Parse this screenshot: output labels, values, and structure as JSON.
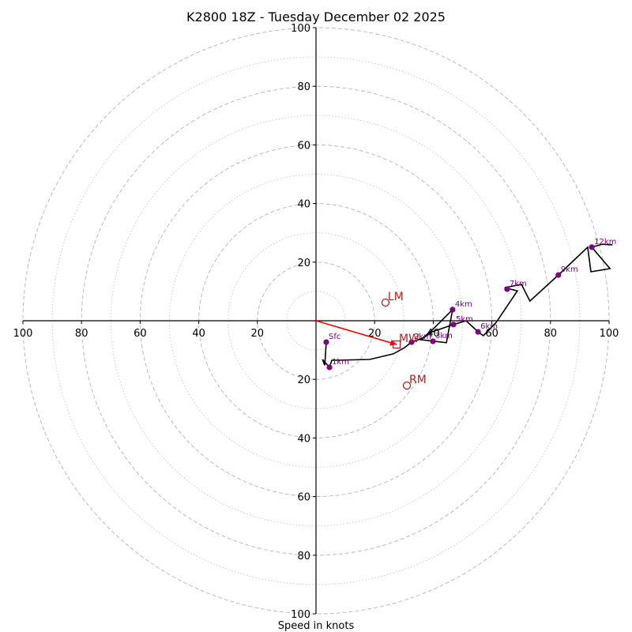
{
  "chart_data": {
    "type": "line",
    "subtype": "hodograph",
    "title": "K2800 18Z - Tuesday December 02 2025",
    "xlabel": "Speed in knots",
    "ylabel": "",
    "range_kt": 100,
    "ring_major_kt": [
      20,
      40,
      60,
      80,
      100
    ],
    "ring_minor_kt": [
      10,
      30,
      50,
      70,
      90
    ],
    "axis_ticks": {
      "right": [
        "20",
        "40",
        "60",
        "80",
        "100"
      ],
      "left": [
        "20",
        "40",
        "60",
        "80",
        "100"
      ],
      "up": [
        "20",
        "40",
        "60",
        "80",
        "100"
      ],
      "down": [
        "20",
        "40",
        "60",
        "80",
        "100"
      ]
    },
    "grid": true,
    "profile_uv_kt": [
      [
        3.5,
        -7.3
      ],
      [
        3.0,
        -15.2
      ],
      [
        2.2,
        -13.2
      ],
      [
        4.6,
        -15.9
      ],
      [
        5.4,
        -13.5
      ],
      [
        18.3,
        -13.2
      ],
      [
        26.4,
        -11.3
      ],
      [
        30.2,
        -9.2
      ],
      [
        32.6,
        -7.3
      ],
      [
        36.4,
        -5.9
      ],
      [
        39.6,
        -3.2
      ],
      [
        46.6,
        3.8
      ],
      [
        44.5,
        -7.5
      ],
      [
        35.8,
        -6.5
      ],
      [
        39.6,
        -3.8
      ],
      [
        46.9,
        -1.3
      ],
      [
        51.2,
        0.0
      ],
      [
        55.3,
        -3.8
      ],
      [
        57.1,
        -5.1
      ],
      [
        61.5,
        -0.5
      ],
      [
        68.7,
        10.2
      ],
      [
        64.4,
        11.3
      ],
      [
        70.1,
        12.4
      ],
      [
        73.0,
        6.7
      ],
      [
        82.7,
        15.6
      ],
      [
        92.7,
        25.1
      ],
      [
        93.8,
        16.7
      ],
      [
        100.3,
        17.8
      ],
      [
        94.1,
        25.1
      ],
      [
        97.6,
        26.1
      ],
      [
        101.1,
        25.9
      ]
    ],
    "height_markers": [
      {
        "label": "Sfc",
        "u": 3.5,
        "v": -7.3
      },
      {
        "label": "1km",
        "u": 4.6,
        "v": -15.9
      },
      {
        "label": "2km",
        "u": 32.6,
        "v": -7.3
      },
      {
        "label": "3km",
        "u": 39.9,
        "v": -7.0
      },
      {
        "label": "4km",
        "u": 46.6,
        "v": 3.8
      },
      {
        "label": "5km",
        "u": 46.9,
        "v": -1.3
      },
      {
        "label": "6km",
        "u": 55.3,
        "v": -3.8
      },
      {
        "label": "7km",
        "u": 65.2,
        "v": 10.8
      },
      {
        "label": "9km",
        "u": 82.7,
        "v": 15.6
      },
      {
        "label": "12km",
        "u": 94.1,
        "v": 25.1
      }
    ],
    "storm_motion": {
      "LM": {
        "label": "LM",
        "u": 23.7,
        "v": 6.2
      },
      "RM": {
        "label": "RM",
        "u": 31.0,
        "v": -22.1
      },
      "MW": {
        "label": "MW",
        "u": 27.5,
        "v": -8.1
      }
    },
    "mean_wind_vector": {
      "from": [
        0,
        0
      ],
      "to": [
        27.5,
        -8.1
      ]
    },
    "colors": {
      "profile": "#000000",
      "markers": "#800080",
      "storm_motion": "#b22222",
      "mean_wind_arrow": "#ff0000",
      "grid": "#bbbbbb"
    }
  }
}
